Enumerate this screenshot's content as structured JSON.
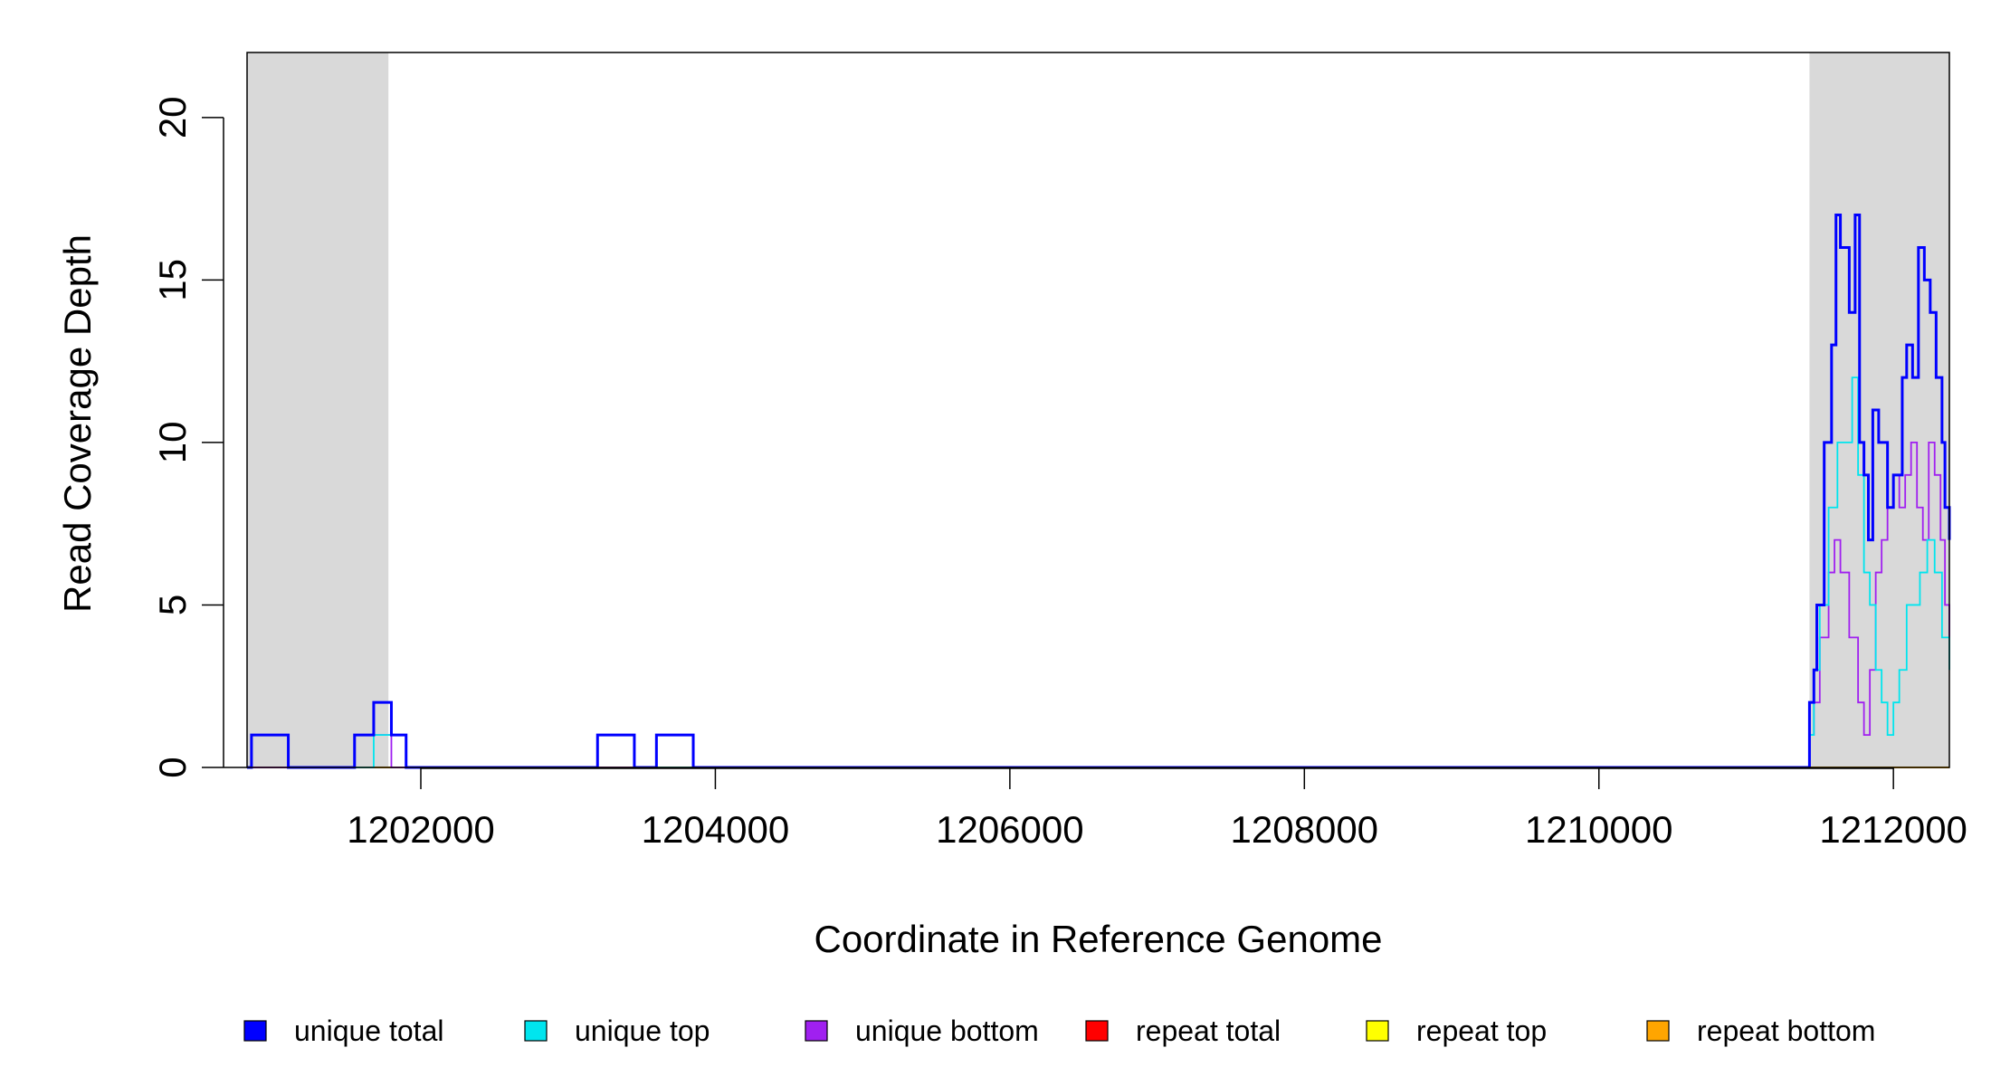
{
  "chart_data": {
    "type": "line",
    "title": "",
    "xlabel": "Coordinate in Reference Genome",
    "ylabel": "Read Coverage Depth",
    "xlim": [
      1200820,
      1212380
    ],
    "ylim": [
      0,
      22
    ],
    "x_ticks": [
      1202000,
      1204000,
      1206000,
      1208000,
      1210000,
      1212000
    ],
    "x_tick_labels": [
      "1202000",
      "1204000",
      "1206000",
      "1208000",
      "1210000",
      "1212000"
    ],
    "y_ticks": [
      0,
      5,
      10,
      15,
      20
    ],
    "y_tick_labels": [
      "0",
      "5",
      "10",
      "15",
      "20"
    ],
    "grid": false,
    "shaded_regions": [
      {
        "x_start": 1200820,
        "x_end": 1201780,
        "color": "#d9d9d9"
      },
      {
        "x_start": 1211430,
        "x_end": 1212380,
        "color": "#d9d9d9"
      }
    ],
    "legend_position": "bottom",
    "series": [
      {
        "name": "unique total",
        "color": "#0000ff",
        "x": [
          1200820,
          1200850,
          1201100,
          1201550,
          1201680,
          1201800,
          1201900,
          1203200,
          1203450,
          1203600,
          1203850,
          1211430,
          1211460,
          1211480,
          1211530,
          1211580,
          1211610,
          1211640,
          1211700,
          1211740,
          1211770,
          1211800,
          1211830,
          1211860,
          1211900,
          1211960,
          1212000,
          1212060,
          1212090,
          1212130,
          1212170,
          1212210,
          1212250,
          1212290,
          1212330,
          1212350,
          1212380
        ],
        "y": [
          0,
          1,
          0,
          1,
          2,
          1,
          0,
          1,
          0,
          1,
          0,
          2,
          3,
          5,
          10,
          13,
          17,
          16,
          14,
          17,
          10,
          9,
          7,
          11,
          10,
          8,
          9,
          12,
          13,
          12,
          16,
          15,
          14,
          12,
          10,
          8,
          7
        ]
      },
      {
        "name": "unique top",
        "color": "#00e5ee",
        "x": [
          1200820,
          1200850,
          1201100,
          1201680,
          1201800,
          1201900,
          1203200,
          1203450,
          1211430,
          1211460,
          1211500,
          1211560,
          1211620,
          1211680,
          1211720,
          1211760,
          1211800,
          1211840,
          1211880,
          1211920,
          1211960,
          1212000,
          1212040,
          1212090,
          1212140,
          1212180,
          1212230,
          1212280,
          1212330,
          1212380
        ],
        "y": [
          0,
          1,
          0,
          1,
          1,
          0,
          1,
          0,
          1,
          3,
          5,
          8,
          10,
          10,
          12,
          9,
          6,
          5,
          3,
          2,
          1,
          2,
          3,
          5,
          5,
          6,
          7,
          6,
          4,
          3
        ]
      },
      {
        "name": "unique bottom",
        "color": "#a020f0",
        "x": [
          1200820,
          1201550,
          1201680,
          1201800,
          1203600,
          1203850,
          1211430,
          1211460,
          1211500,
          1211560,
          1211600,
          1211640,
          1211700,
          1211760,
          1211800,
          1211840,
          1211880,
          1211920,
          1211960,
          1212000,
          1212040,
          1212080,
          1212120,
          1212160,
          1212200,
          1212240,
          1212280,
          1212320,
          1212350,
          1212380
        ],
        "y": [
          0,
          1,
          1,
          0,
          1,
          0,
          1,
          2,
          4,
          6,
          7,
          6,
          4,
          2,
          1,
          3,
          6,
          7,
          8,
          9,
          8,
          9,
          10,
          8,
          7,
          10,
          9,
          7,
          5,
          4
        ]
      },
      {
        "name": "repeat total",
        "color": "#ff0000",
        "x": [
          1200820,
          1212380
        ],
        "y": [
          0,
          0
        ]
      },
      {
        "name": "repeat top",
        "color": "#ffff00",
        "x": [
          1200820,
          1212380
        ],
        "y": [
          0,
          0
        ]
      },
      {
        "name": "repeat bottom",
        "color": "#ffa500",
        "x": [
          1200820,
          1212380
        ],
        "y": [
          0,
          0
        ]
      }
    ]
  }
}
